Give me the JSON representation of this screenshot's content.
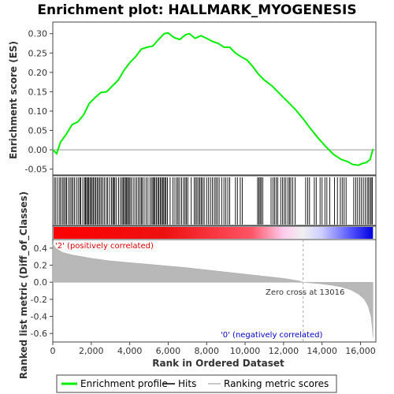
{
  "chart_data": {
    "type": "line",
    "title": "Enrichment plot: HALLMARK_MYOGENESIS",
    "colors": {
      "es_line": "#00ee00",
      "hits": "#000000",
      "metric_fill": "#b8b8b8",
      "zero_line": "#9a9a9a",
      "positive_label": "#dd0000",
      "negative_label": "#0000cc",
      "heat_positive": "#ff0000",
      "heat_negative": "#0000ff",
      "heat_mid": "#f0f0f0",
      "frame": "#444444"
    },
    "enrichment_panel": {
      "ylabel": "Enrichment score (ES)",
      "xlim": [
        0,
        16800
      ],
      "ylim": [
        -0.065,
        0.33
      ],
      "yticks": [
        "-0.05",
        "0.00",
        "0.05",
        "0.10",
        "0.15",
        "0.20",
        "0.25",
        "0.30"
      ],
      "ytick_values": [
        -0.05,
        0.0,
        0.05,
        0.1,
        0.15,
        0.2,
        0.25,
        0.3
      ],
      "es_curve": [
        [
          0,
          0.0
        ],
        [
          200,
          -0.01
        ],
        [
          400,
          0.02
        ],
        [
          700,
          0.04
        ],
        [
          1000,
          0.065
        ],
        [
          1300,
          0.072
        ],
        [
          1600,
          0.09
        ],
        [
          1900,
          0.12
        ],
        [
          2200,
          0.135
        ],
        [
          2500,
          0.148
        ],
        [
          2800,
          0.15
        ],
        [
          3100,
          0.165
        ],
        [
          3400,
          0.18
        ],
        [
          3700,
          0.205
        ],
        [
          4000,
          0.225
        ],
        [
          4300,
          0.24
        ],
        [
          4600,
          0.26
        ],
        [
          4900,
          0.265
        ],
        [
          5200,
          0.268
        ],
        [
          5500,
          0.285
        ],
        [
          5800,
          0.3
        ],
        [
          6000,
          0.302
        ],
        [
          6300,
          0.29
        ],
        [
          6600,
          0.285
        ],
        [
          6900,
          0.297
        ],
        [
          7100,
          0.3
        ],
        [
          7400,
          0.288
        ],
        [
          7700,
          0.295
        ],
        [
          8000,
          0.288
        ],
        [
          8300,
          0.28
        ],
        [
          8600,
          0.275
        ],
        [
          8900,
          0.265
        ],
        [
          9200,
          0.265
        ],
        [
          9500,
          0.25
        ],
        [
          9800,
          0.24
        ],
        [
          10100,
          0.232
        ],
        [
          10400,
          0.215
        ],
        [
          10700,
          0.195
        ],
        [
          11000,
          0.18
        ],
        [
          11400,
          0.165
        ],
        [
          11800,
          0.145
        ],
        [
          12200,
          0.125
        ],
        [
          12600,
          0.105
        ],
        [
          13016,
          0.08
        ],
        [
          13400,
          0.055
        ],
        [
          13800,
          0.03
        ],
        [
          14200,
          0.008
        ],
        [
          14600,
          -0.012
        ],
        [
          15000,
          -0.025
        ],
        [
          15300,
          -0.03
        ],
        [
          15600,
          -0.038
        ],
        [
          15900,
          -0.04
        ],
        [
          16100,
          -0.035
        ],
        [
          16300,
          -0.033
        ],
        [
          16500,
          -0.025
        ],
        [
          16650,
          0.002
        ]
      ]
    },
    "hits": [
      80,
      160,
      260,
      360,
      420,
      520,
      580,
      660,
      720,
      820,
      900,
      980,
      1050,
      1130,
      1230,
      1320,
      1400,
      1450,
      1560,
      1650,
      1700,
      1760,
      1810,
      1870,
      1930,
      1990,
      2050,
      2110,
      2180,
      2240,
      2310,
      2380,
      2450,
      2520,
      2600,
      2680,
      2780,
      2850,
      2950,
      3050,
      3120,
      3170,
      3230,
      3310,
      3420,
      3520,
      3600,
      3660,
      3720,
      3780,
      3840,
      3890,
      3950,
      4010,
      4080,
      4180,
      4270,
      4360,
      4450,
      4530,
      4600,
      4660,
      4750,
      4850,
      4950,
      5060,
      5150,
      5210,
      5260,
      5320,
      5390,
      5460,
      5520,
      5590,
      5650,
      5710,
      5770,
      5830,
      5890,
      5960,
      6100,
      6250,
      6350,
      6450,
      6520,
      6600,
      6700,
      6800,
      6880,
      6950,
      7020,
      7200,
      7350,
      7430,
      7500,
      7580,
      7650,
      7720,
      7790,
      7870,
      8000,
      8100,
      8200,
      8300,
      8400,
      8480,
      8560,
      8650,
      8780,
      8900,
      9000,
      9100,
      9200,
      9500,
      9600,
      9750,
      9850,
      10650,
      10720,
      10780,
      10840,
      10920,
      11350,
      11450,
      11530,
      11620,
      11700,
      11850,
      11950,
      12040,
      12120,
      12230,
      12310,
      12380,
      12480,
      12600,
      13150,
      13250,
      13350,
      13600,
      13700,
      13900,
      14000,
      14150,
      14250,
      14400,
      14650,
      14800,
      14950,
      15050,
      15150,
      15250,
      15650,
      15750,
      15850,
      15950,
      16050,
      16150,
      16250,
      16350,
      16420,
      16500,
      16560,
      16620
    ],
    "metric_panel": {
      "xlabel": "Rank in Ordered Dataset",
      "ylabel": "Ranked list metric (Diff_of_Classes)",
      "ylim": [
        -0.7,
        0.5
      ],
      "yticks": [
        "0.4",
        "0.2",
        "0.0",
        "-0.2",
        "-0.4",
        "-0.6"
      ],
      "ytick_values": [
        0.4,
        0.2,
        0.0,
        -0.2,
        -0.4,
        -0.6
      ],
      "xticks": [
        "0",
        "2,000",
        "4,000",
        "6,000",
        "8,000",
        "10,000",
        "12,000",
        "14,000",
        "16,000"
      ],
      "xtick_values": [
        0,
        2000,
        4000,
        6000,
        8000,
        10000,
        12000,
        14000,
        16000
      ],
      "metric_curve": [
        [
          0,
          0.45
        ],
        [
          150,
          0.4
        ],
        [
          500,
          0.35
        ],
        [
          1000,
          0.32
        ],
        [
          2000,
          0.28
        ],
        [
          3000,
          0.25
        ],
        [
          4000,
          0.23
        ],
        [
          5000,
          0.21
        ],
        [
          6000,
          0.19
        ],
        [
          7000,
          0.17
        ],
        [
          8000,
          0.145
        ],
        [
          9000,
          0.12
        ],
        [
          10000,
          0.095
        ],
        [
          11000,
          0.07
        ],
        [
          12000,
          0.045
        ],
        [
          12800,
          0.015
        ],
        [
          13016,
          0.0
        ],
        [
          13500,
          -0.01
        ],
        [
          14000,
          -0.02
        ],
        [
          14500,
          -0.035
        ],
        [
          15000,
          -0.055
        ],
        [
          15500,
          -0.09
        ],
        [
          15900,
          -0.14
        ],
        [
          16200,
          -0.2
        ],
        [
          16400,
          -0.28
        ],
        [
          16550,
          -0.4
        ],
        [
          16620,
          -0.55
        ],
        [
          16650,
          -0.65
        ]
      ],
      "zero_cross_rank": 13016,
      "zero_cross_label": "Zero cross at 13016",
      "positive_label": "'2' (positively correlated)",
      "negative_label": "'0' (negatively correlated)"
    },
    "legend": {
      "entries": [
        "Enrichment profile",
        "Hits",
        "Ranking metric scores"
      ],
      "placement": "bottom"
    }
  }
}
